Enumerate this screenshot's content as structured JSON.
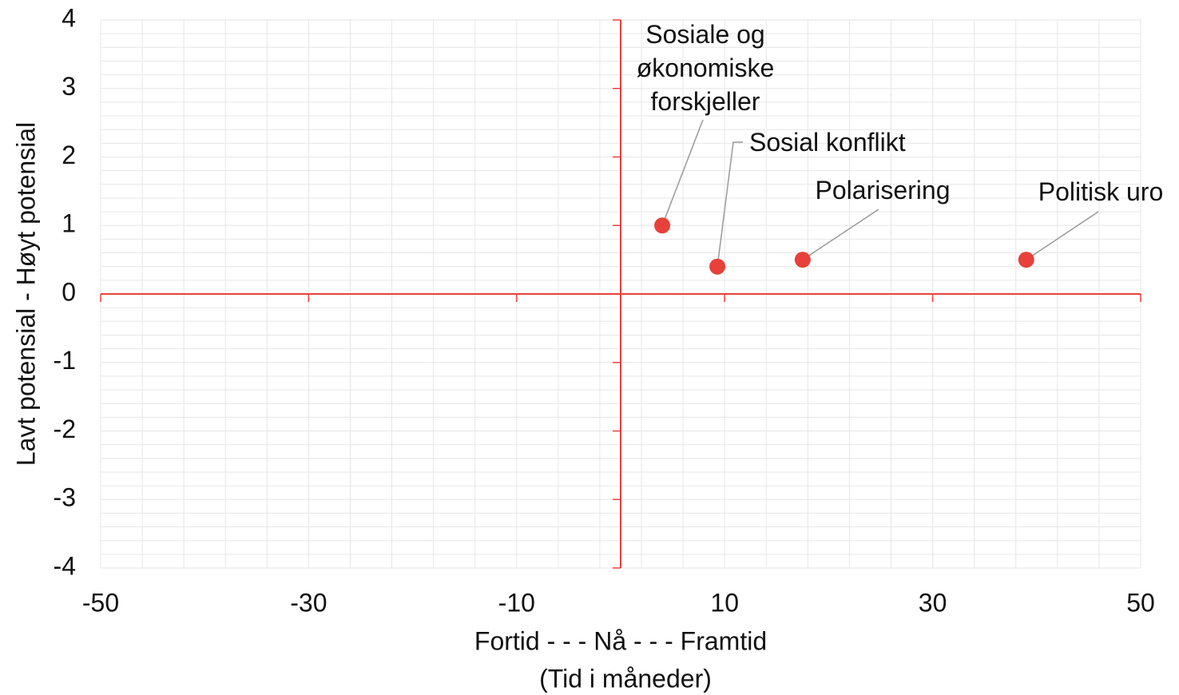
{
  "chart_data": {
    "type": "scatter",
    "x_label": "Fortid - - -  Nå - - - Framtid",
    "x_label_sub": "(Tid i måneder)",
    "y_label": "Lavt potensial - Høyt potensial",
    "x": [
      4,
      9.3,
      17.5,
      39
    ],
    "series": [
      {
        "color": "#e8403a",
        "values": [
          1,
          0.4,
          0.5,
          0.5
        ]
      }
    ],
    "point_labels": [
      "Sosiale og økonomiske forskjeller",
      "Sosial konflikt",
      "Polarisering",
      "Politisk uro"
    ],
    "xlim": [
      -50,
      50
    ],
    "xticks": [
      -50,
      -30,
      -10,
      10,
      30,
      50
    ],
    "ylim": [
      -4,
      4
    ],
    "yticks": [
      -4,
      -3,
      -2,
      -1,
      0,
      1,
      2,
      3,
      4
    ],
    "grid": true,
    "axis_color": "#e8403a"
  }
}
